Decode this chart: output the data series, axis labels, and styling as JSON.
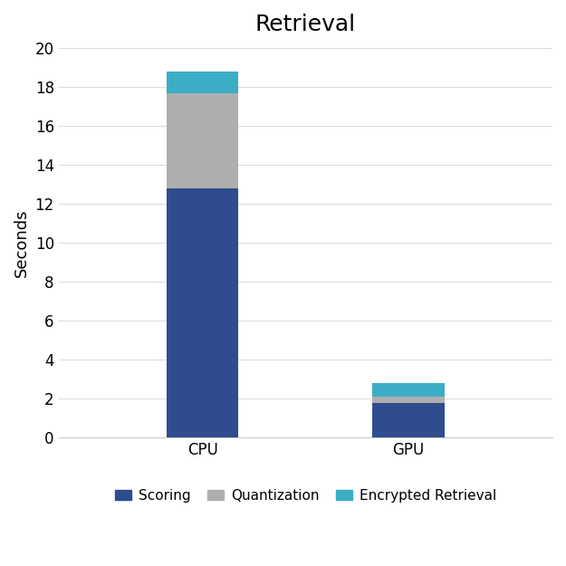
{
  "title": "Retrieval",
  "ylabel": "Seconds",
  "categories": [
    "CPU",
    "GPU"
  ],
  "scoring": [
    12.8,
    1.8
  ],
  "quantization": [
    4.9,
    0.3
  ],
  "encrypted_retrieval": [
    1.1,
    0.7
  ],
  "color_scoring": "#2E4C8E",
  "color_quantization": "#AEAEAE",
  "color_encrypted": "#3BAEC6",
  "ylim": [
    0,
    20
  ],
  "yticks": [
    0,
    2,
    4,
    6,
    8,
    10,
    12,
    14,
    16,
    18,
    20
  ],
  "legend_labels": [
    "Scoring",
    "Quantization",
    "Encrypted Retrieval"
  ],
  "title_fontsize": 18,
  "axis_label_fontsize": 13,
  "tick_fontsize": 12,
  "legend_fontsize": 11,
  "bar_width": 0.35,
  "background_color": "#FFFFFF",
  "grid_color": "#DDDDDD"
}
